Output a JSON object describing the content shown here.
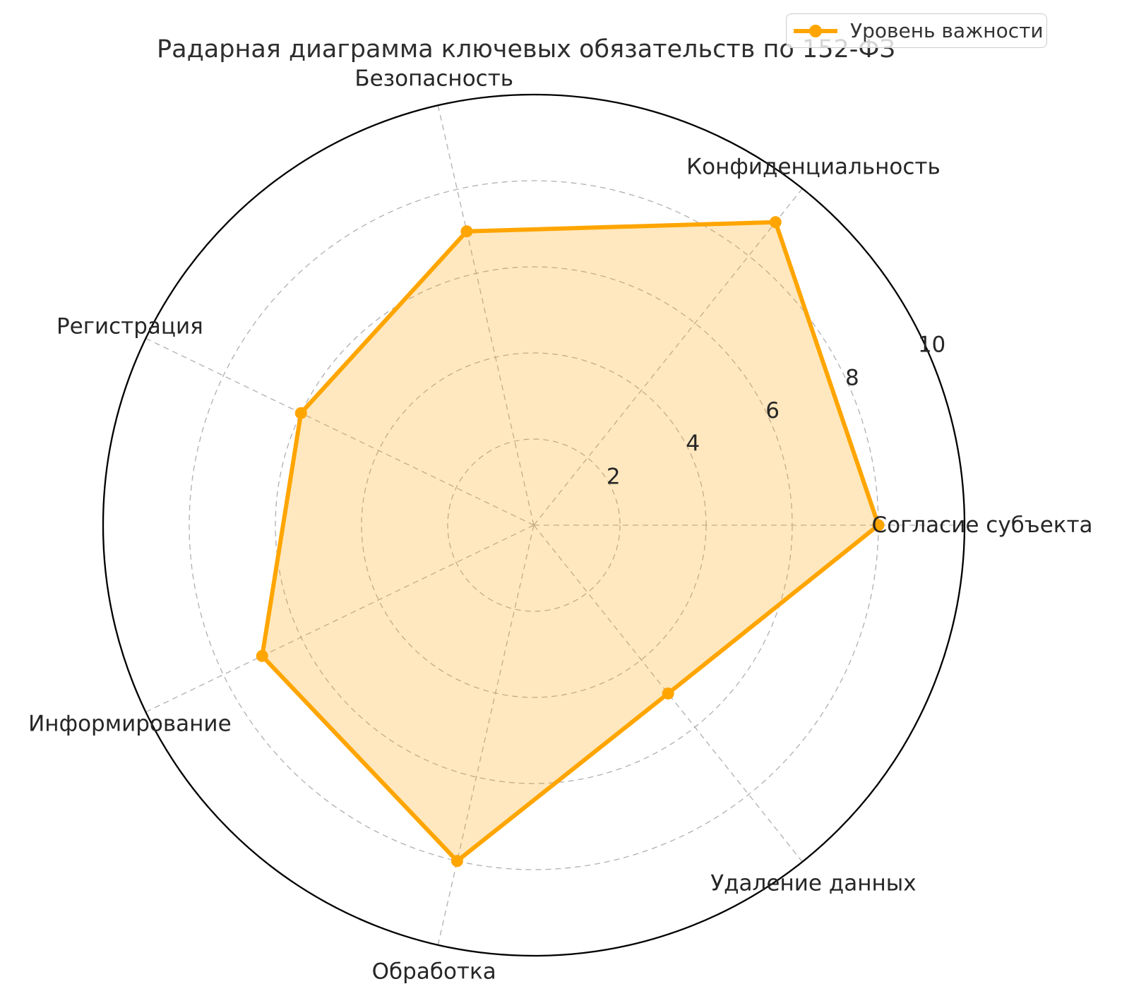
{
  "chart_data": {
    "type": "radar",
    "title": "Радарная диаграмма ключевых обязательств по 152-ФЗ",
    "categories": [
      "Согласие субъекта",
      "Конфиденциальность",
      "Безопасность",
      "Регистрация",
      "Информирование",
      "Обработка",
      "Удаление данных"
    ],
    "series": [
      {
        "name": "Уровень важности",
        "values": [
          8,
          9,
          7,
          6,
          7,
          8,
          5
        ]
      }
    ],
    "radial_ticks": [
      2,
      4,
      6,
      8,
      10
    ],
    "rlim": [
      0,
      10
    ],
    "grid": true,
    "legend_position": "upper-right",
    "colors": {
      "series_line": "#FFA500",
      "series_fill": "rgba(255,165,0,0.25)",
      "grid": "#b0b0b0",
      "outer_ring": "#000000",
      "text": "#262626"
    }
  }
}
